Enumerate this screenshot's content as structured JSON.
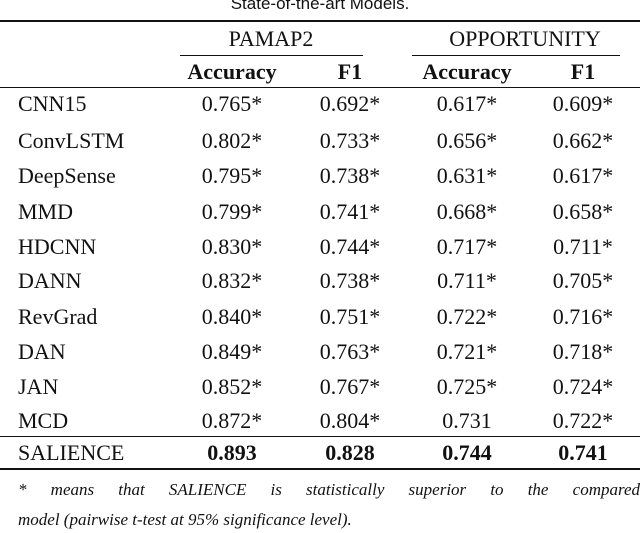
{
  "table": {
    "caption": "State-of-the-art Models.",
    "groups": [
      "PAMAP2",
      "OPPORTUNITY"
    ],
    "columns": [
      "Accuracy",
      "F1",
      "Accuracy",
      "F1"
    ],
    "rows": [
      {
        "name": "CNN15",
        "cells": [
          "0.765*",
          "0.692*",
          "0.617*",
          "0.609*"
        ]
      },
      {
        "name": "ConvLSTM",
        "cells": [
          "0.802*",
          "0.733*",
          "0.656*",
          "0.662*"
        ]
      },
      {
        "name": "DeepSense",
        "cells": [
          "0.795*",
          "0.738*",
          "0.631*",
          "0.617*"
        ]
      },
      {
        "name": "MMD",
        "cells": [
          "0.799*",
          "0.741*",
          "0.668*",
          "0.658*"
        ]
      },
      {
        "name": "HDCNN",
        "cells": [
          "0.830*",
          "0.744*",
          "0.717*",
          "0.711*"
        ]
      },
      {
        "name": "DANN",
        "cells": [
          "0.832*",
          "0.738*",
          "0.711*",
          "0.705*"
        ]
      },
      {
        "name": "RevGrad",
        "cells": [
          "0.840*",
          "0.751*",
          "0.722*",
          "0.716*"
        ]
      },
      {
        "name": "DAN",
        "cells": [
          "0.849*",
          "0.763*",
          "0.721*",
          "0.718*"
        ]
      },
      {
        "name": "JAN",
        "cells": [
          "0.852*",
          "0.767*",
          "0.725*",
          "0.724*"
        ]
      },
      {
        "name": "MCD",
        "cells": [
          "0.872*",
          "0.804*",
          "0.731",
          "0.722*"
        ]
      },
      {
        "name": "SALIENCE",
        "cells": [
          "0.893",
          "0.828",
          "0.744",
          "0.741"
        ],
        "bold": true
      }
    ],
    "footnote": [
      "* means that SALIENCE is statistically superior to the compared",
      "model (pairwise t-test at 95% significance level)."
    ]
  }
}
